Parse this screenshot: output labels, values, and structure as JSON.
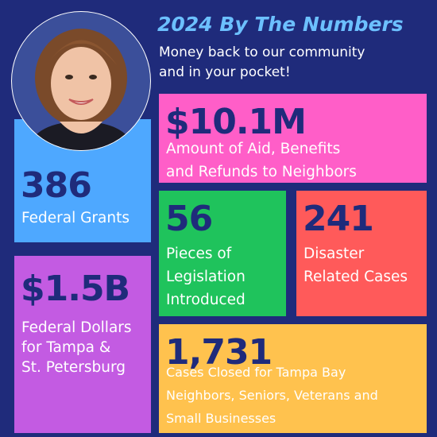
{
  "header": {
    "title": "2024 By The Numbers",
    "subtitle": [
      "Money back to our community",
      "and in your pocket!"
    ]
  },
  "tiles": [
    {
      "value": "386",
      "label": [
        "Federal Grants"
      ]
    },
    {
      "value": "$1.5B",
      "label": [
        "Federal Dollars",
        "for Tampa &",
        "St. Petersburg"
      ]
    },
    {
      "value": "$10.1M",
      "label": [
        "Amount of Aid, Benefits",
        "and Refunds to Neighbors"
      ]
    },
    {
      "value": "56",
      "label": [
        "Pieces of",
        "Legislation",
        "Introduced"
      ]
    },
    {
      "value": "241",
      "label": [
        "Disaster",
        "Related Cases"
      ]
    },
    {
      "value": "1,731",
      "label": [
        "Cases Closed for Tampa Bay",
        "Neighbors, Seniors, Veterans and",
        "Small Businesses"
      ]
    }
  ]
}
